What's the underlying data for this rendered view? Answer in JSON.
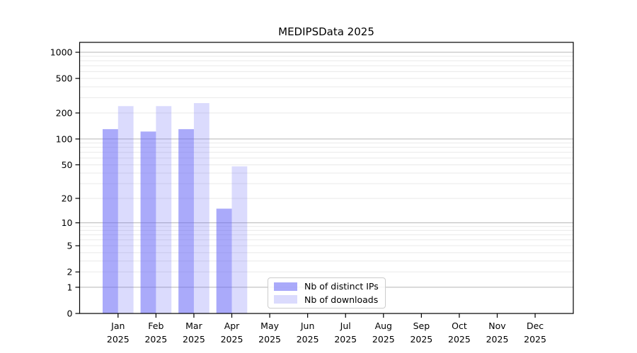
{
  "figure": {
    "title": "MEDIPSData 2025",
    "background_color": "#ffffff"
  },
  "legend": {
    "items": [
      {
        "label": "Nb of distinct IPs",
        "swatch_color": "rgba(100,100,245,0.55)",
        "swatch_color_hex": "#aaaaf9"
      },
      {
        "label": "Nb of downloads",
        "swatch_color": "rgba(100,100,245,0.23)",
        "swatch_color_hex": "#dcdcf9"
      }
    ]
  },
  "chart_data": {
    "type": "bar",
    "title": "MEDIPSData 2025",
    "y_scale": "log1p",
    "categories": [
      "Jan",
      "Feb",
      "Mar",
      "Apr",
      "May",
      "Jun",
      "Jul",
      "Aug",
      "Sep",
      "Oct",
      "Nov",
      "Dec"
    ],
    "x_tick_year_line": "2025",
    "series": [
      {
        "name": "Nb of distinct IPs",
        "color": "rgba(100,100,245,0.55)",
        "color_hex": "#aaaaf9",
        "values": [
          130,
          122,
          130,
          15,
          0,
          0,
          0,
          0,
          0,
          0,
          0,
          0
        ]
      },
      {
        "name": "Nb of downloads",
        "color": "rgba(100,100,245,0.23)",
        "color_hex": "#dcdcf9",
        "values": [
          240,
          240,
          260,
          48,
          0,
          0,
          0,
          0,
          0,
          0,
          0,
          0
        ]
      }
    ],
    "y_tick_labels": [
      "0",
      "1",
      "2",
      "5",
      "10",
      "20",
      "50",
      "100",
      "200",
      "500",
      "1000"
    ],
    "y_tick_values": [
      0,
      1,
      2,
      5,
      10,
      20,
      50,
      100,
      200,
      500,
      1000
    ],
    "y_major_gridline_values": [
      1,
      10,
      100,
      1000
    ],
    "y_minor_gridline_values": [
      2,
      3,
      4,
      5,
      6,
      7,
      8,
      9,
      20,
      30,
      40,
      50,
      60,
      70,
      80,
      90,
      200,
      300,
      400,
      500,
      600,
      700,
      800,
      900
    ],
    "ylim": [
      0,
      1300
    ],
    "xlabel": "",
    "ylabel": "",
    "grid": true,
    "legend_position": "inside bottom-center",
    "colors": {
      "major_gridline": "#b5b5b5",
      "minor_gridline": "#e9e9e9",
      "axis_spine": "#000000",
      "tick_label": "#000000"
    }
  }
}
